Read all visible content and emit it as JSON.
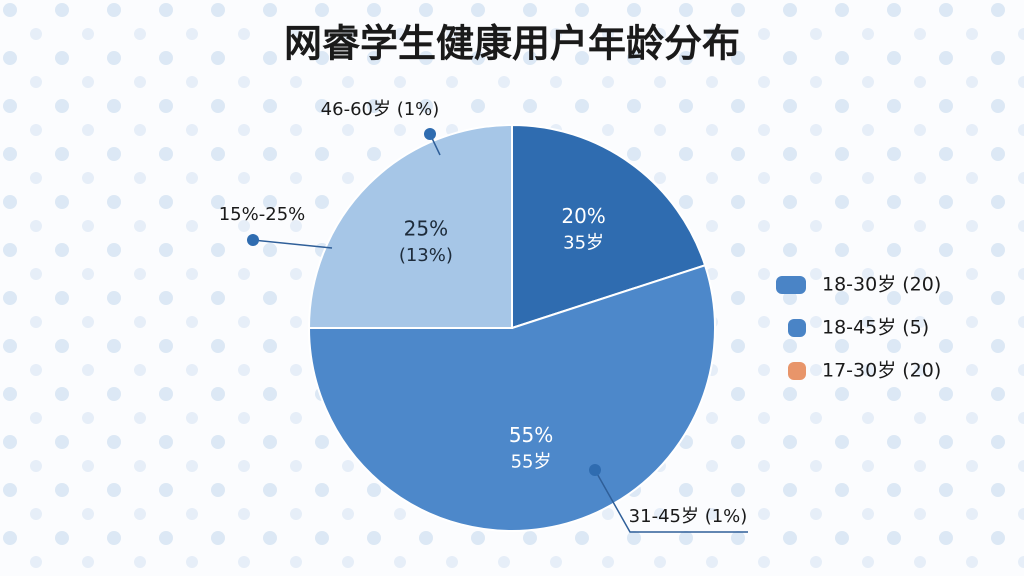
{
  "chart_data": {
    "type": "pie",
    "title": "网睿学生健康用户年龄分布",
    "values": [
      20,
      55,
      25
    ],
    "value_labels": [
      "20%",
      "55%",
      "25%"
    ],
    "sub_labels": [
      "35岁",
      "55岁",
      "(13%)"
    ],
    "colors": [
      "#2f6cb0",
      "#4d88ca",
      "#a6c6e7"
    ],
    "annotations": [
      "46-60岁 (1%)",
      "15%-25%",
      "31-45岁 (1%)"
    ],
    "legend": [
      {
        "name": "18-30岁 (20)",
        "color": "#4a84c6"
      },
      {
        "name": "18-45岁 (5)",
        "color": "#4a84c6"
      },
      {
        "name": "17-30岁 (20)",
        "color": "#e8956a"
      }
    ]
  }
}
